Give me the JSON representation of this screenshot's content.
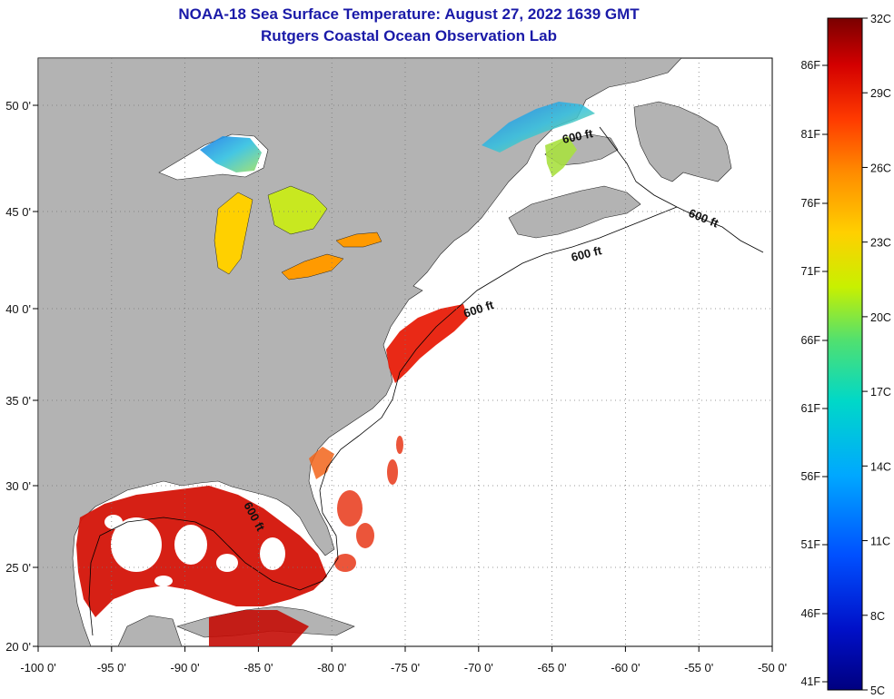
{
  "title": {
    "line1": "NOAA-18 Sea Surface Temperature:  August 27, 2022 1639 GMT",
    "line2": "Rutgers Coastal Ocean Observation Lab"
  },
  "map": {
    "lon_labels": [
      "-100 0'",
      "-95 0'",
      "-90 0'",
      "-85 0'",
      "-80 0'",
      "-75 0'",
      "-70 0'",
      "-65 0'",
      "-60 0'",
      "-55 0'",
      "-50 0'"
    ],
    "lat_labels": [
      "50 0'",
      "45 0'",
      "40 0'",
      "35 0'",
      "30 0'",
      "25 0'",
      "20 0'"
    ],
    "contour_label": "600 ft",
    "land_color": "#b3b3b3",
    "ocean_color": "#ffffff"
  },
  "colorbar": {
    "celsius_labels": [
      "32C",
      "29C",
      "26C",
      "23C",
      "20C",
      "17C",
      "14C",
      "11C",
      "8C",
      "5C"
    ],
    "fahrenheit_labels": [
      "86F",
      "81F",
      "76F",
      "71F",
      "66F",
      "61F",
      "56F",
      "51F",
      "46F",
      "41F"
    ],
    "colors": [
      "#7a0000",
      "#d40000",
      "#ff3a00",
      "#ff8c00",
      "#ffd000",
      "#c8f000",
      "#50e070",
      "#00d8c8",
      "#00a8ff",
      "#0050ff",
      "#0010c8",
      "#000080"
    ]
  }
}
